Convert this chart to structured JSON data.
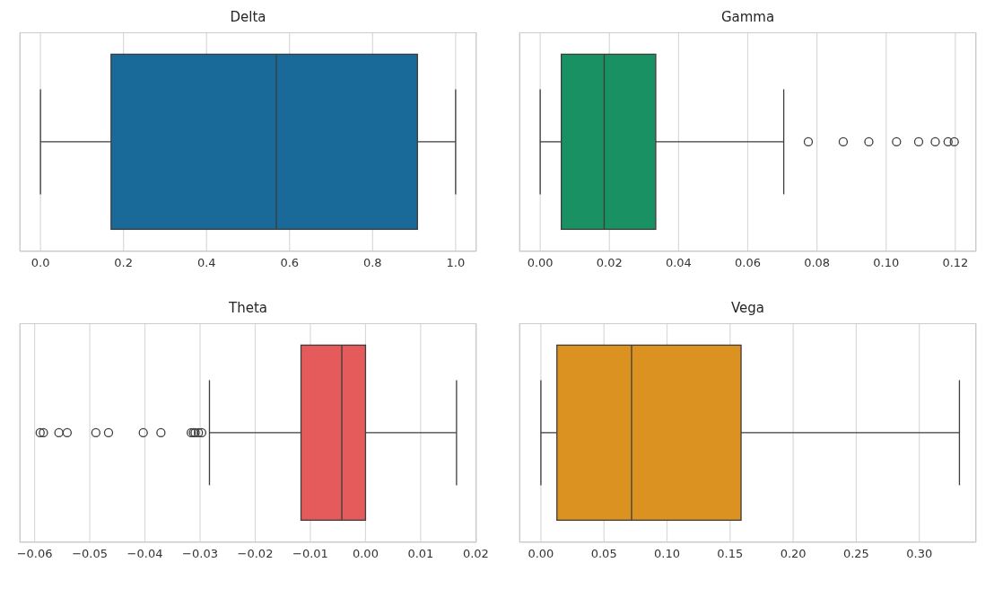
{
  "chart_data": [
    {
      "type": "box",
      "title": "Delta",
      "orientation": "horizontal",
      "categories": [
        null
      ],
      "color": "#196a99",
      "grid": "x",
      "boxes": [
        {
          "low": 0,
          "q1": 0.17,
          "median": 0.568,
          "q3": 0.908,
          "high": 1.0
        }
      ],
      "xlim": [
        -0.05,
        1.05
      ],
      "xticks": [
        {
          "value": 0,
          "label": "0.0"
        },
        {
          "value": 0.2,
          "label": "0.2"
        },
        {
          "value": 0.4,
          "label": "0.4"
        },
        {
          "value": 0.6,
          "label": "0.6"
        },
        {
          "value": 0.8,
          "label": "0.8"
        },
        {
          "value": 1,
          "label": "1.0"
        }
      ]
    },
    {
      "type": "box",
      "title": "Gamma",
      "orientation": "horizontal",
      "categories": [
        null
      ],
      "color": "#1a9162",
      "grid": "x",
      "boxes": [
        {
          "low": 0,
          "q1": 0.0061,
          "median": 0.0185,
          "q3": 0.0334,
          "high": 0.0704,
          "outliers": [
            0.0775,
            0.0876,
            0.095,
            0.103,
            0.1094,
            0.1142,
            0.1179,
            0.1197
          ]
        }
      ],
      "xlim": [
        -0.006,
        0.126
      ],
      "xticks": [
        {
          "value": 0,
          "label": "0.00"
        },
        {
          "value": 0.02,
          "label": "0.02"
        },
        {
          "value": 0.04,
          "label": "0.04"
        },
        {
          "value": 0.06,
          "label": "0.06"
        },
        {
          "value": 0.08,
          "label": "0.08"
        },
        {
          "value": 0.1,
          "label": "0.10"
        },
        {
          "value": 0.12,
          "label": "0.12"
        }
      ]
    },
    {
      "type": "box",
      "title": "Theta",
      "orientation": "horizontal",
      "categories": [
        null
      ],
      "color": "#e55a5a",
      "grid": "x",
      "boxes": [
        {
          "low": -0.0283,
          "q1": -0.0117,
          "median": -0.0043,
          "q3": 0.0,
          "high": 0.0165,
          "outliers": [
            -0.059,
            -0.0584,
            -0.0556,
            -0.0541,
            -0.0489,
            -0.0466,
            -0.0403,
            -0.0371,
            -0.0316,
            -0.0312,
            -0.0309,
            -0.0303,
            -0.0297
          ]
        }
      ],
      "xlim": [
        -0.0627,
        0.0201
      ],
      "xticks": [
        {
          "value": -0.06,
          "label": "−0.06"
        },
        {
          "value": -0.05,
          "label": "−0.05"
        },
        {
          "value": -0.04,
          "label": "−0.04"
        },
        {
          "value": -0.03,
          "label": "−0.03"
        },
        {
          "value": -0.02,
          "label": "−0.02"
        },
        {
          "value": -0.01,
          "label": "−0.01"
        },
        {
          "value": 0,
          "label": "0.00"
        },
        {
          "value": 0.01,
          "label": "0.01"
        },
        {
          "value": 0.02,
          "label": "0.02"
        }
      ]
    },
    {
      "type": "box",
      "title": "Vega",
      "orientation": "horizontal",
      "categories": [
        null
      ],
      "color": "#dc9221",
      "grid": "x",
      "boxes": [
        {
          "low": 0,
          "q1": 0.0127,
          "median": 0.0719,
          "q3": 0.1587,
          "high": 0.3318
        }
      ],
      "xlim": [
        -0.017,
        0.345
      ],
      "xticks": [
        {
          "value": 0,
          "label": "0.00"
        },
        {
          "value": 0.05,
          "label": "0.05"
        },
        {
          "value": 0.1,
          "label": "0.10"
        },
        {
          "value": 0.15,
          "label": "0.15"
        },
        {
          "value": 0.2,
          "label": "0.20"
        },
        {
          "value": 0.25,
          "label": "0.25"
        },
        {
          "value": 0.3,
          "label": "0.30"
        }
      ]
    }
  ]
}
